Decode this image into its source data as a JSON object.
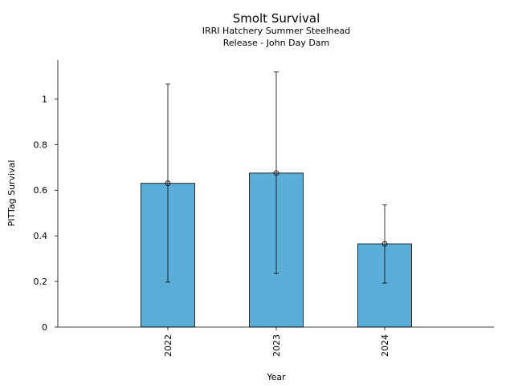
{
  "chart_data": {
    "type": "bar",
    "title": "Smolt Survival",
    "subtitle_lines": [
      "IRRI Hatchery Summer Steelhead",
      "Release - John Day Dam"
    ],
    "xlabel": "Year",
    "ylabel": "PITTag Survival",
    "categories": [
      "2022",
      "2023",
      "2024"
    ],
    "values": [
      0.63,
      0.675,
      0.365
    ],
    "error_low": [
      0.197,
      0.235,
      0.193
    ],
    "error_high": [
      1.065,
      1.118,
      0.535
    ],
    "ylim": [
      0,
      1.17
    ],
    "yticks": [
      0,
      0.2,
      0.4,
      0.6,
      0.8,
      1
    ],
    "ytick_labels": [
      "0",
      "0.2",
      "0.4",
      "0.6",
      "0.8",
      "1"
    ],
    "bar_color": "#5aadd6",
    "grid": false,
    "legend": "none"
  }
}
